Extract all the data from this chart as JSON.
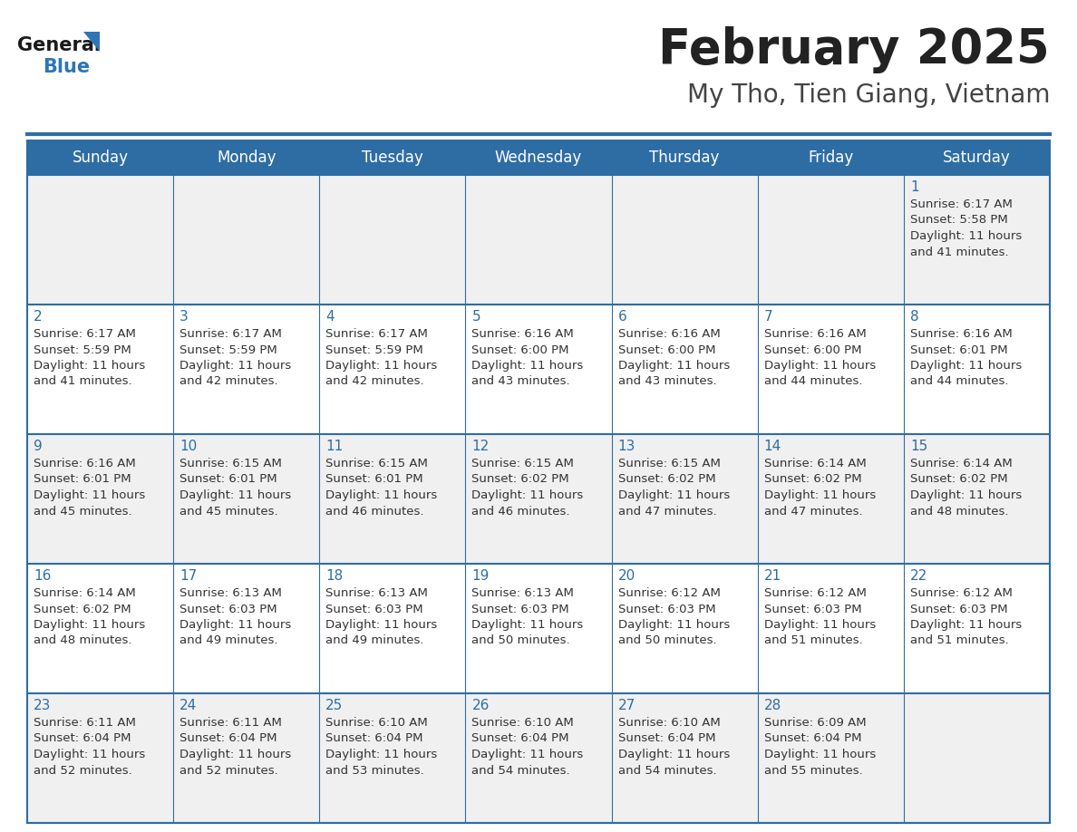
{
  "title": "February 2025",
  "subtitle": "My Tho, Tien Giang, Vietnam",
  "days_of_week": [
    "Sunday",
    "Monday",
    "Tuesday",
    "Wednesday",
    "Thursday",
    "Friday",
    "Saturday"
  ],
  "header_bg": "#2E6DA4",
  "header_text_color": "#FFFFFF",
  "cell_bg_light": "#F0F0F0",
  "cell_bg_white": "#FFFFFF",
  "border_color": "#2E6DA4",
  "day_number_color": "#2E6DA4",
  "cell_text_color": "#333333",
  "title_color": "#222222",
  "subtitle_color": "#444444",
  "logo_general_color": "#1a1a1a",
  "logo_blue_color": "#2E75B6",
  "calendar": [
    [
      null,
      null,
      null,
      null,
      null,
      null,
      1
    ],
    [
      2,
      3,
      4,
      5,
      6,
      7,
      8
    ],
    [
      9,
      10,
      11,
      12,
      13,
      14,
      15
    ],
    [
      16,
      17,
      18,
      19,
      20,
      21,
      22
    ],
    [
      23,
      24,
      25,
      26,
      27,
      28,
      null
    ]
  ],
  "sunrise_sunset": {
    "1": {
      "sunrise": "6:17 AM",
      "sunset": "5:58 PM",
      "daylight": "11 hours",
      "daylight2": "and 41 minutes."
    },
    "2": {
      "sunrise": "6:17 AM",
      "sunset": "5:59 PM",
      "daylight": "11 hours",
      "daylight2": "and 41 minutes."
    },
    "3": {
      "sunrise": "6:17 AM",
      "sunset": "5:59 PM",
      "daylight": "11 hours",
      "daylight2": "and 42 minutes."
    },
    "4": {
      "sunrise": "6:17 AM",
      "sunset": "5:59 PM",
      "daylight": "11 hours",
      "daylight2": "and 42 minutes."
    },
    "5": {
      "sunrise": "6:16 AM",
      "sunset": "6:00 PM",
      "daylight": "11 hours",
      "daylight2": "and 43 minutes."
    },
    "6": {
      "sunrise": "6:16 AM",
      "sunset": "6:00 PM",
      "daylight": "11 hours",
      "daylight2": "and 43 minutes."
    },
    "7": {
      "sunrise": "6:16 AM",
      "sunset": "6:00 PM",
      "daylight": "11 hours",
      "daylight2": "and 44 minutes."
    },
    "8": {
      "sunrise": "6:16 AM",
      "sunset": "6:01 PM",
      "daylight": "11 hours",
      "daylight2": "and 44 minutes."
    },
    "9": {
      "sunrise": "6:16 AM",
      "sunset": "6:01 PM",
      "daylight": "11 hours",
      "daylight2": "and 45 minutes."
    },
    "10": {
      "sunrise": "6:15 AM",
      "sunset": "6:01 PM",
      "daylight": "11 hours",
      "daylight2": "and 45 minutes."
    },
    "11": {
      "sunrise": "6:15 AM",
      "sunset": "6:01 PM",
      "daylight": "11 hours",
      "daylight2": "and 46 minutes."
    },
    "12": {
      "sunrise": "6:15 AM",
      "sunset": "6:02 PM",
      "daylight": "11 hours",
      "daylight2": "and 46 minutes."
    },
    "13": {
      "sunrise": "6:15 AM",
      "sunset": "6:02 PM",
      "daylight": "11 hours",
      "daylight2": "and 47 minutes."
    },
    "14": {
      "sunrise": "6:14 AM",
      "sunset": "6:02 PM",
      "daylight": "11 hours",
      "daylight2": "and 47 minutes."
    },
    "15": {
      "sunrise": "6:14 AM",
      "sunset": "6:02 PM",
      "daylight": "11 hours",
      "daylight2": "and 48 minutes."
    },
    "16": {
      "sunrise": "6:14 AM",
      "sunset": "6:02 PM",
      "daylight": "11 hours",
      "daylight2": "and 48 minutes."
    },
    "17": {
      "sunrise": "6:13 AM",
      "sunset": "6:03 PM",
      "daylight": "11 hours",
      "daylight2": "and 49 minutes."
    },
    "18": {
      "sunrise": "6:13 AM",
      "sunset": "6:03 PM",
      "daylight": "11 hours",
      "daylight2": "and 49 minutes."
    },
    "19": {
      "sunrise": "6:13 AM",
      "sunset": "6:03 PM",
      "daylight": "11 hours",
      "daylight2": "and 50 minutes."
    },
    "20": {
      "sunrise": "6:12 AM",
      "sunset": "6:03 PM",
      "daylight": "11 hours",
      "daylight2": "and 50 minutes."
    },
    "21": {
      "sunrise": "6:12 AM",
      "sunset": "6:03 PM",
      "daylight": "11 hours",
      "daylight2": "and 51 minutes."
    },
    "22": {
      "sunrise": "6:12 AM",
      "sunset": "6:03 PM",
      "daylight": "11 hours",
      "daylight2": "and 51 minutes."
    },
    "23": {
      "sunrise": "6:11 AM",
      "sunset": "6:04 PM",
      "daylight": "11 hours",
      "daylight2": "and 52 minutes."
    },
    "24": {
      "sunrise": "6:11 AM",
      "sunset": "6:04 PM",
      "daylight": "11 hours",
      "daylight2": "and 52 minutes."
    },
    "25": {
      "sunrise": "6:10 AM",
      "sunset": "6:04 PM",
      "daylight": "11 hours",
      "daylight2": "and 53 minutes."
    },
    "26": {
      "sunrise": "6:10 AM",
      "sunset": "6:04 PM",
      "daylight": "11 hours",
      "daylight2": "and 54 minutes."
    },
    "27": {
      "sunrise": "6:10 AM",
      "sunset": "6:04 PM",
      "daylight": "11 hours",
      "daylight2": "and 54 minutes."
    },
    "28": {
      "sunrise": "6:09 AM",
      "sunset": "6:04 PM",
      "daylight": "11 hours",
      "daylight2": "and 55 minutes."
    }
  }
}
